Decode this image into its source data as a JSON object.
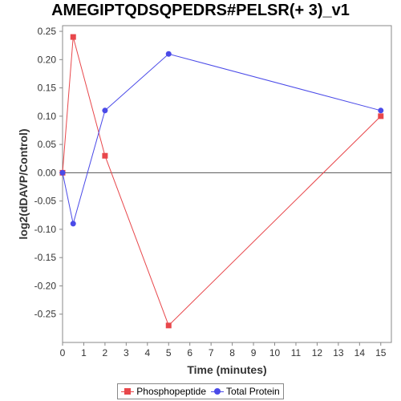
{
  "chart_data": {
    "type": "line",
    "title": "AMEGIPTQDSQPEDRS#PELSR(+ 3)_v1",
    "xlabel": "Time (minutes)",
    "ylabel": "log2(dDAVP/Control)",
    "xlim": [
      0,
      15.5
    ],
    "ylim": [
      -0.3,
      0.26
    ],
    "xticks": [
      0,
      1,
      2,
      3,
      4,
      5,
      6,
      7,
      8,
      9,
      10,
      11,
      12,
      13,
      14,
      15
    ],
    "yticks": [
      -0.25,
      -0.2,
      -0.15,
      -0.1,
      -0.05,
      0.0,
      0.05,
      0.1,
      0.15,
      0.2,
      0.25
    ],
    "ytick_labels": [
      "-0.25",
      "-0.20",
      "-0.15",
      "-0.10",
      "-0.05",
      "0.00",
      "0.05",
      "0.10",
      "0.15",
      "0.20",
      "0.25"
    ],
    "grid": false,
    "legend_position": "bottom",
    "series": [
      {
        "name": "Phosphopeptide",
        "color": "#e8474b",
        "marker": "square",
        "x": [
          0,
          0.5,
          2,
          5,
          15
        ],
        "y": [
          0.0,
          0.24,
          0.03,
          -0.27,
          0.1
        ]
      },
      {
        "name": "Total Protein",
        "color": "#4a4ae8",
        "marker": "circle",
        "x": [
          0,
          0.5,
          2,
          5,
          15
        ],
        "y": [
          0.0,
          -0.09,
          0.11,
          0.21,
          0.11
        ]
      }
    ]
  }
}
